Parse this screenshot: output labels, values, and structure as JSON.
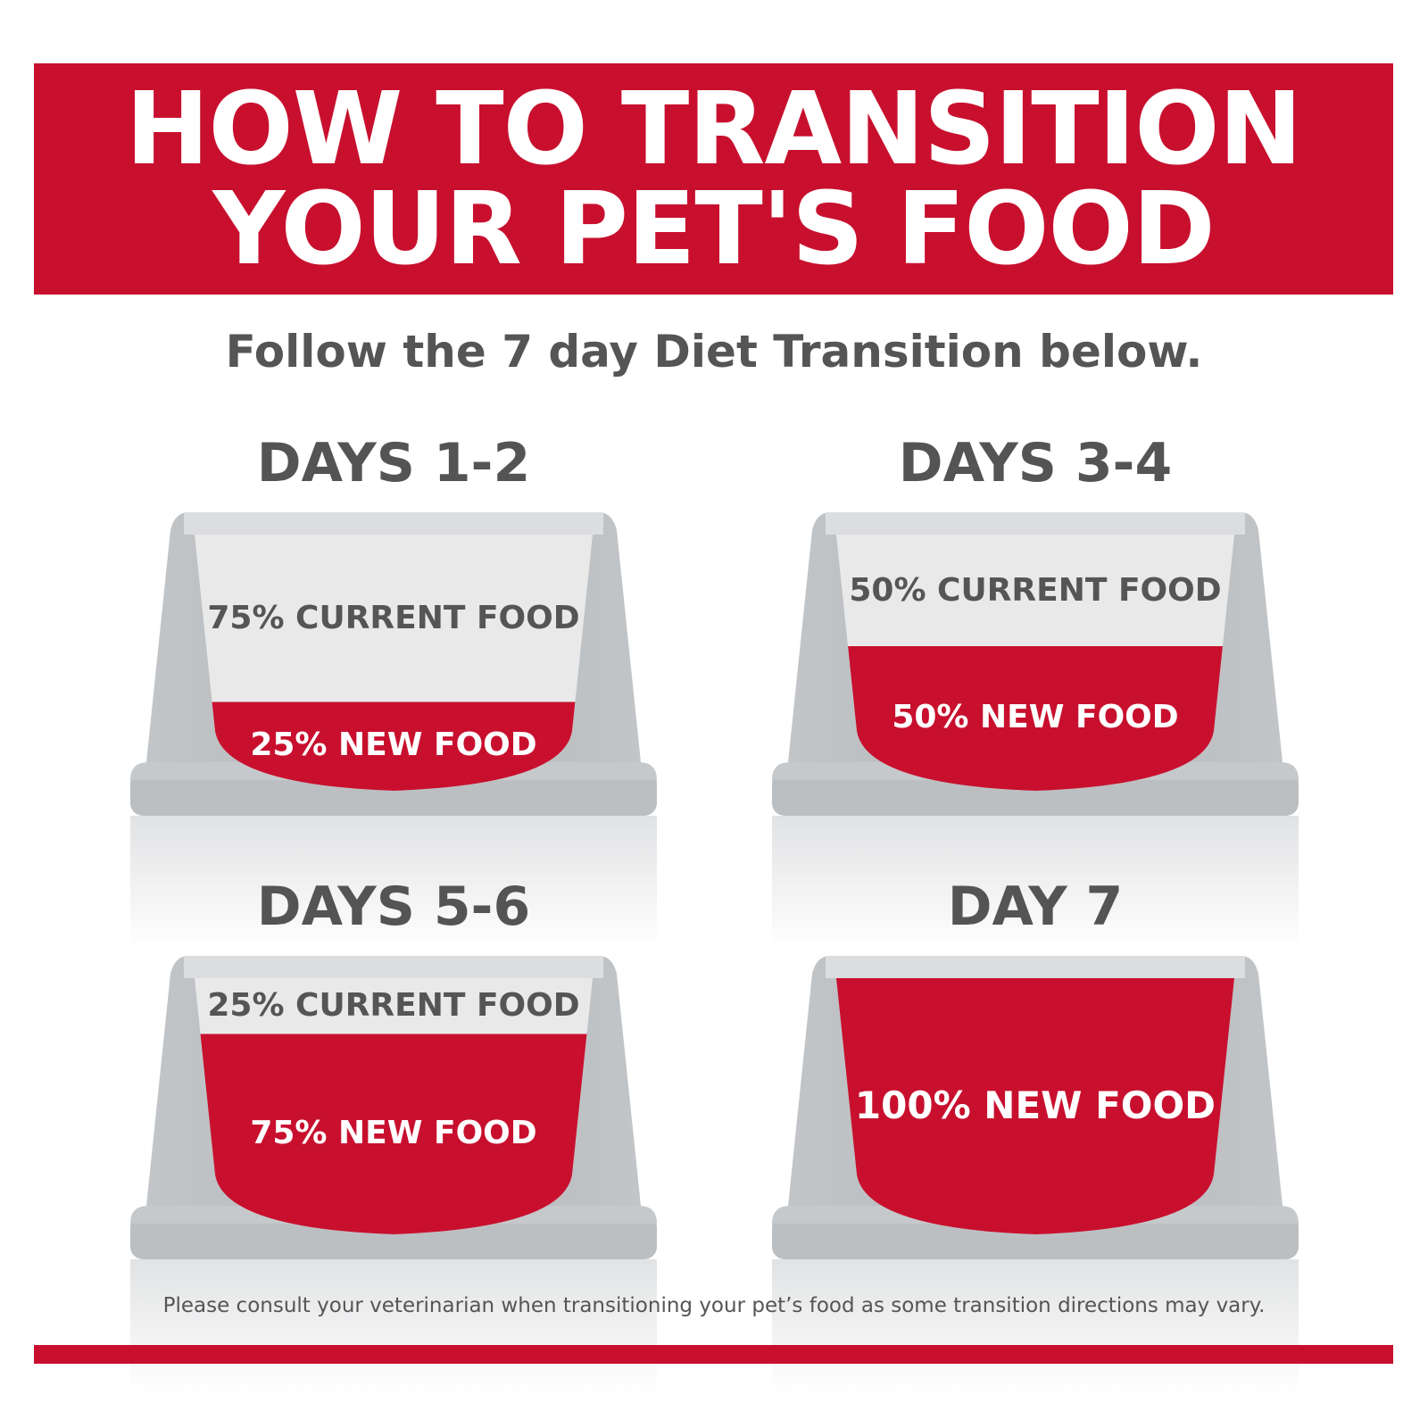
{
  "header": {
    "line1": "HOW TO TRANSITION",
    "line2": "YOUR PET'S FOOD"
  },
  "subtitle": "Follow the 7 day Diet Transition below.",
  "colors": {
    "brand_red": "#c8102e",
    "text_gray": "#555555",
    "bowl_gray": "#b9bcbf"
  },
  "stages": [
    {
      "title": "DAYS 1-2",
      "current_label": "75% CURRENT FOOD",
      "new_label": "25% NEW FOOD",
      "new_fraction": 0.25
    },
    {
      "title": "DAYS 3-4",
      "current_label": "50% CURRENT FOOD",
      "new_label": "50% NEW FOOD",
      "new_fraction": 0.5
    },
    {
      "title": "DAYS 5-6",
      "current_label": "25% CURRENT FOOD",
      "new_label": "75% NEW FOOD",
      "new_fraction": 0.75
    },
    {
      "title": "DAY 7",
      "current_label": "",
      "new_label": "100% NEW FOOD",
      "new_fraction": 1.0
    }
  ],
  "footer": "Please consult your veterinarian when transitioning your pet’s food as some transition directions may vary."
}
